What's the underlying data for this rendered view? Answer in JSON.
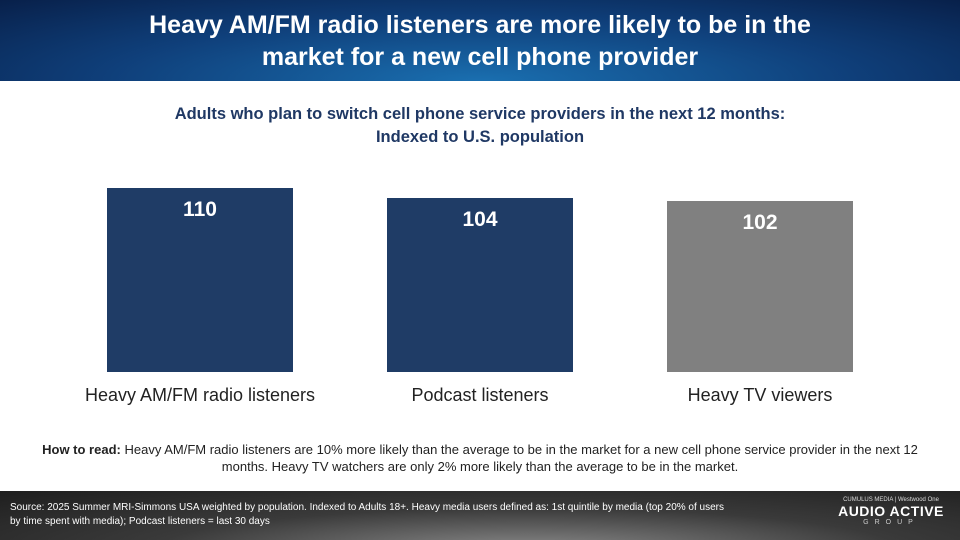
{
  "header": {
    "title_line1": "Heavy AM/FM radio listeners are more likely to be in the",
    "title_line2": "market for a new cell phone provider"
  },
  "subtitle": {
    "line1": "Adults who plan to switch cell phone service providers in the next 12 months:",
    "line2": "Indexed to U.S. population"
  },
  "chart_data": {
    "type": "bar",
    "title": "Adults who plan to switch cell phone service providers in the next 12 months: Indexed to U.S. population",
    "categories": [
      "Heavy AM/FM radio listeners",
      "Podcast listeners",
      "Heavy TV viewers"
    ],
    "values": [
      110,
      104,
      102
    ],
    "colors": [
      "#1f3c66",
      "#1f3c66",
      "#808080"
    ],
    "ylim": [
      0,
      110
    ],
    "xlabel": "",
    "ylabel": "",
    "grid": false
  },
  "how_to_read": {
    "label": "How to read:",
    "text": " Heavy AM/FM radio listeners are 10% more likely than the average to be in the market for a new cell phone service provider in the next 12 months. Heavy TV watchers are only 2% more likely than the average to be in the market."
  },
  "footer": {
    "source": "Source: 2025 Summer MRI-Simmons USA weighted by population.  Indexed to Adults 18+. Heavy media users defined as: 1st quintile by media (top 20% of users by time spent with media); Podcast listeners = last 30 days",
    "logo_top": "CUMULUS MEDIA | Westwood One",
    "logo_main": "AUDIO ACTIVE",
    "logo_sub": "GROUP"
  }
}
